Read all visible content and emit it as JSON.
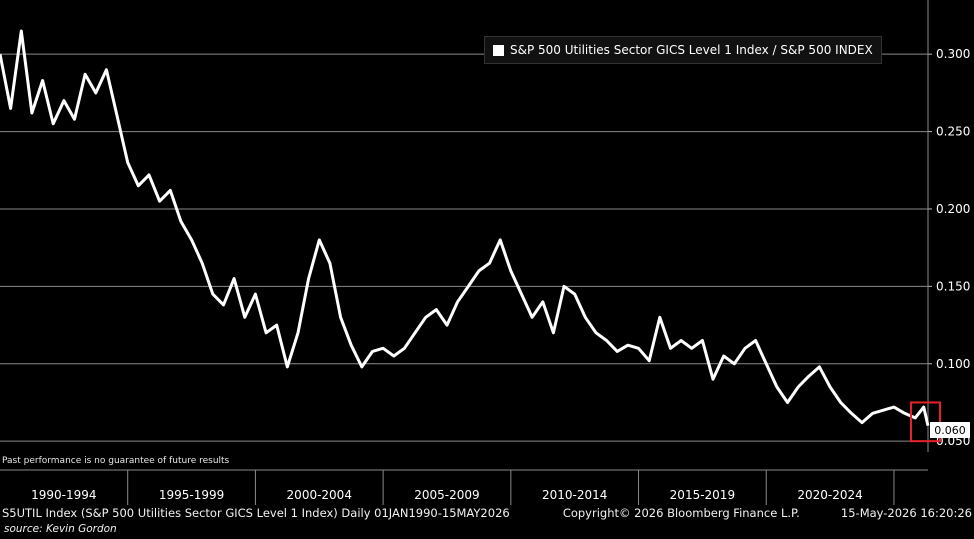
{
  "chart_data": {
    "type": "line",
    "legend_position": "top-right",
    "series": [
      {
        "name": "S&P 500 Utilities Sector GICS Level 1 Index / S&P 500 INDEX",
        "color": "#ffffff",
        "x": [
          "1990-01",
          "1990-06",
          "1990-11",
          "1991-04",
          "1991-09",
          "1992-02",
          "1992-07",
          "1992-12",
          "1993-05",
          "1993-10",
          "1994-03",
          "1994-08",
          "1995-01",
          "1995-06",
          "1995-11",
          "1996-04",
          "1996-09",
          "1997-02",
          "1997-07",
          "1997-12",
          "1998-05",
          "1998-10",
          "1999-03",
          "1999-08",
          "2000-01",
          "2000-06",
          "2000-11",
          "2001-04",
          "2001-09",
          "2002-02",
          "2002-07",
          "2002-12",
          "2003-05",
          "2003-10",
          "2004-03",
          "2004-08",
          "2005-01",
          "2005-06",
          "2005-11",
          "2006-04",
          "2006-09",
          "2007-02",
          "2007-07",
          "2007-12",
          "2008-05",
          "2008-10",
          "2009-03",
          "2009-08",
          "2010-01",
          "2010-06",
          "2010-11",
          "2011-04",
          "2011-09",
          "2012-02",
          "2012-07",
          "2012-12",
          "2013-05",
          "2013-10",
          "2014-03",
          "2014-08",
          "2015-01",
          "2015-06",
          "2015-11",
          "2016-04",
          "2016-09",
          "2017-02",
          "2017-07",
          "2017-12",
          "2018-05",
          "2018-10",
          "2019-03",
          "2019-08",
          "2020-01",
          "2020-06",
          "2020-11",
          "2021-04",
          "2021-09",
          "2022-02",
          "2022-07",
          "2022-12",
          "2023-05",
          "2023-10",
          "2024-03",
          "2024-08",
          "2025-01",
          "2025-06",
          "2025-11",
          "2026-03",
          "2026-05"
        ],
        "values": [
          0.3,
          0.265,
          0.315,
          0.262,
          0.283,
          0.255,
          0.27,
          0.258,
          0.287,
          0.275,
          0.29,
          0.26,
          0.23,
          0.215,
          0.222,
          0.205,
          0.212,
          0.192,
          0.18,
          0.165,
          0.145,
          0.138,
          0.155,
          0.13,
          0.145,
          0.12,
          0.125,
          0.098,
          0.12,
          0.155,
          0.18,
          0.165,
          0.13,
          0.112,
          0.098,
          0.108,
          0.11,
          0.105,
          0.11,
          0.12,
          0.13,
          0.135,
          0.125,
          0.14,
          0.15,
          0.16,
          0.165,
          0.18,
          0.16,
          0.145,
          0.13,
          0.14,
          0.12,
          0.15,
          0.145,
          0.13,
          0.12,
          0.115,
          0.108,
          0.112,
          0.11,
          0.102,
          0.13,
          0.11,
          0.115,
          0.11,
          0.115,
          0.09,
          0.105,
          0.1,
          0.11,
          0.115,
          0.1,
          0.085,
          0.075,
          0.085,
          0.092,
          0.098,
          0.085,
          0.075,
          0.068,
          0.062,
          0.068,
          0.07,
          0.072,
          0.068,
          0.065,
          0.072,
          0.06
        ]
      }
    ],
    "y_ticks": [
      "0.050",
      "0.100",
      "0.150",
      "0.200",
      "0.250",
      "0.300"
    ],
    "y_tick_values": [
      0.05,
      0.1,
      0.15,
      0.2,
      0.25,
      0.3
    ],
    "ylim": [
      0.043,
      0.335
    ],
    "x_range": [
      "1990-01",
      "2026-05"
    ],
    "x_groups": [
      "1990-1994",
      "1995-1999",
      "2000-2004",
      "2005-2009",
      "2010-2014",
      "2015-2019",
      "2020-2024"
    ],
    "last_value_label": "0.060",
    "last_value": 0.06,
    "highlight_box_color": "#e8222b",
    "grid": true,
    "axis_position": "right"
  },
  "footer": {
    "description": "S5UTIL Index (S&P 500 Utilities Sector GICS Level 1 Index) Daily 01JAN1990-15MAY2026",
    "copyright": "Copyright© 2026 Bloomberg Finance L.P.",
    "timestamp": "15-May-2026 16:20:26",
    "source": "source: Kevin Gordon",
    "disclaimer": "Past performance is no guarantee of future results"
  }
}
